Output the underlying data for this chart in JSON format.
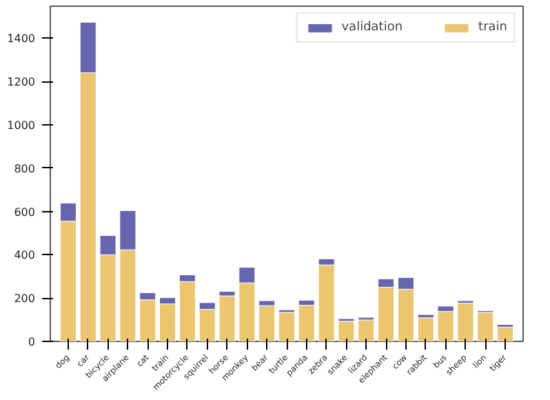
{
  "chart_data": {
    "type": "bar",
    "stacked": true,
    "categories": [
      "dog",
      "car",
      "bicycle",
      "airplane",
      "cat",
      "train",
      "motorcycle",
      "squirrel",
      "horse",
      "monkey",
      "bear",
      "turtle",
      "panda",
      "zebra",
      "snake",
      "lizard",
      "elephant",
      "cow",
      "rabbit",
      "bus",
      "sheep",
      "lion",
      "tiger"
    ],
    "series": [
      {
        "name": "train",
        "color": "#ebc570",
        "values": [
          555,
          1241,
          400,
          423,
          192,
          173,
          276,
          148,
          210,
          270,
          165,
          134,
          167,
          353,
          93,
          99,
          250,
          241,
          109,
          138,
          177,
          134,
          66
        ]
      },
      {
        "name": "validation",
        "color": "#6566ae",
        "values": [
          84,
          233,
          89,
          181,
          33,
          29,
          31,
          31,
          21,
          72,
          23,
          12,
          23,
          28,
          12,
          12,
          39,
          54,
          15,
          25,
          11,
          8,
          12
        ]
      }
    ],
    "ylim": [
      0,
      1548
    ],
    "yticks": [
      0,
      200,
      400,
      600,
      800,
      1000,
      1200,
      1400
    ],
    "grid": false,
    "legend": "top right"
  }
}
